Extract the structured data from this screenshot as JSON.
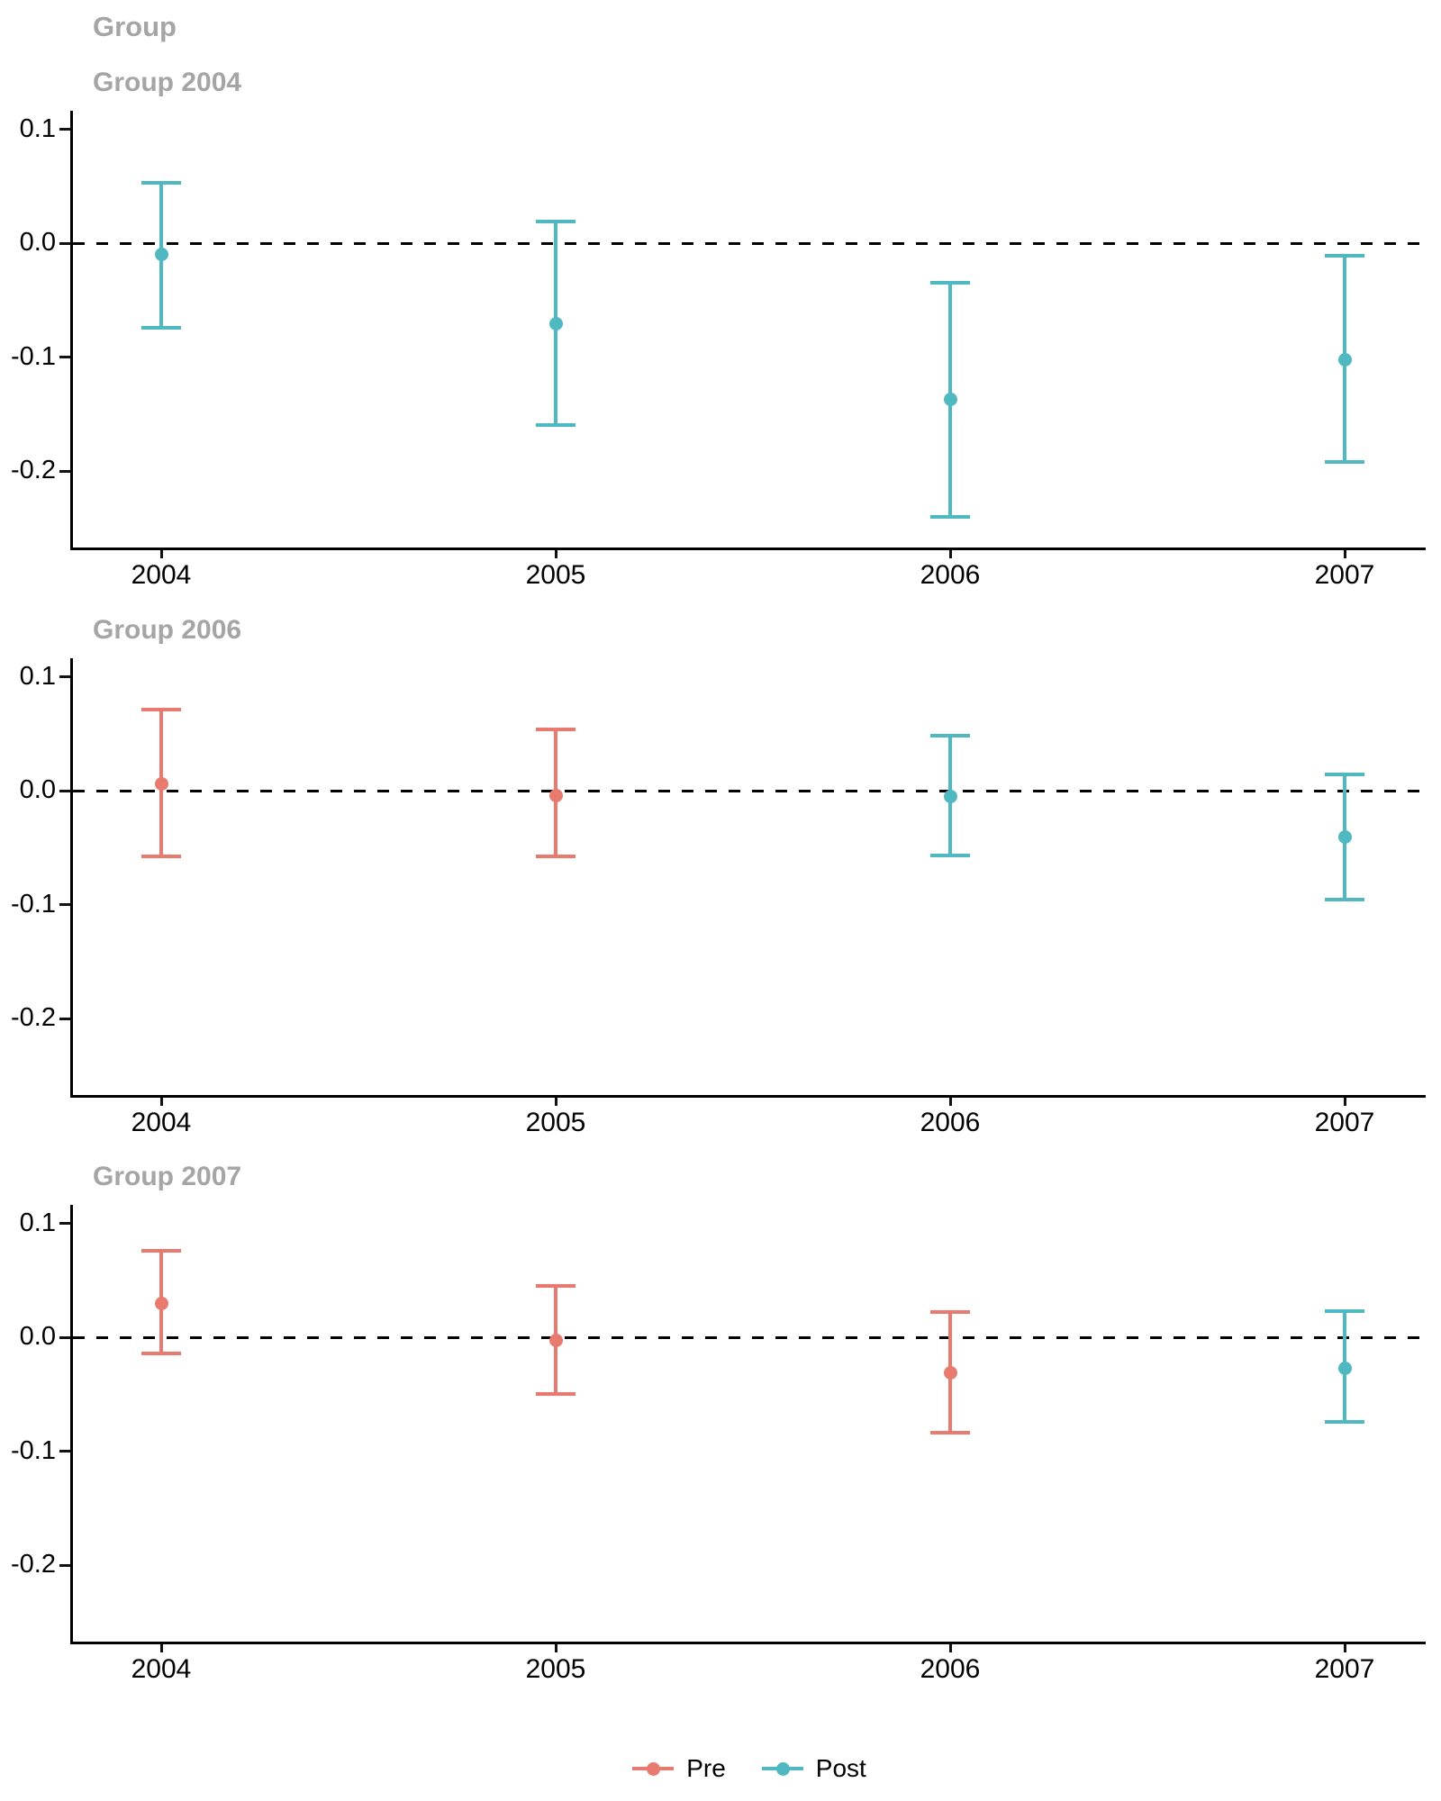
{
  "chart_data": {
    "type": "scatter",
    "chart_kind": "pointrange-event-study",
    "title": "Group",
    "series_colors": {
      "Pre": "#E87A70",
      "Post": "#4FB8C0"
    },
    "legend": {
      "position": "bottom",
      "entries": [
        {
          "label": "Pre",
          "series": "Pre"
        },
        {
          "label": "Post",
          "series": "Post"
        }
      ]
    },
    "axis": {
      "ylim": [
        -0.267,
        0.116
      ],
      "ref_line_y": 0,
      "grid": false,
      "y_ticks": [
        {
          "value": 0.1,
          "label": "0.1"
        },
        {
          "value": 0.0,
          "label": "0.0"
        },
        {
          "value": -0.1,
          "label": "-0.1"
        },
        {
          "value": -0.2,
          "label": "-0.2"
        }
      ],
      "x_ticks": [
        {
          "year": 2004,
          "label": "2004"
        },
        {
          "year": 2005,
          "label": "2005"
        },
        {
          "year": 2006,
          "label": "2006"
        },
        {
          "year": 2007,
          "label": "2007"
        }
      ]
    },
    "panels": [
      {
        "title": "Group 2004",
        "points": [
          {
            "year": 2004,
            "series": "Post",
            "est": -0.01,
            "lo": -0.074,
            "hi": 0.053
          },
          {
            "year": 2005,
            "series": "Post",
            "est": -0.071,
            "lo": -0.16,
            "hi": 0.019
          },
          {
            "year": 2006,
            "series": "Post",
            "est": -0.137,
            "lo": -0.24,
            "hi": -0.035
          },
          {
            "year": 2007,
            "series": "Post",
            "est": -0.102,
            "lo": -0.192,
            "hi": -0.011
          }
        ]
      },
      {
        "title": "Group 2006",
        "points": [
          {
            "year": 2004,
            "series": "Pre",
            "est": 0.006,
            "lo": -0.058,
            "hi": 0.071
          },
          {
            "year": 2005,
            "series": "Pre",
            "est": -0.004,
            "lo": -0.058,
            "hi": 0.054
          },
          {
            "year": 2006,
            "series": "Post",
            "est": -0.005,
            "lo": -0.057,
            "hi": 0.048
          },
          {
            "year": 2007,
            "series": "Post",
            "est": -0.041,
            "lo": -0.096,
            "hi": 0.014
          }
        ]
      },
      {
        "title": "Group 2007",
        "points": [
          {
            "year": 2004,
            "series": "Pre",
            "est": 0.03,
            "lo": -0.014,
            "hi": 0.076
          },
          {
            "year": 2005,
            "series": "Pre",
            "est": -0.003,
            "lo": -0.05,
            "hi": 0.045
          },
          {
            "year": 2006,
            "series": "Pre",
            "est": -0.031,
            "lo": -0.084,
            "hi": 0.022
          },
          {
            "year": 2007,
            "series": "Post",
            "est": -0.027,
            "lo": -0.074,
            "hi": 0.023
          }
        ]
      }
    ]
  },
  "styles": {
    "title_color": "#A5A5A5",
    "axis_color": "#000000",
    "tick_label_color": "#000000",
    "background": "#FFFFFF"
  }
}
